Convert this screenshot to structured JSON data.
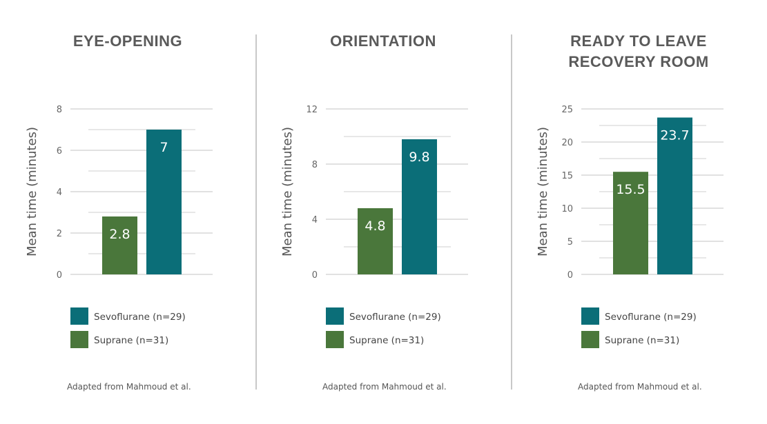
{
  "colors": {
    "sevoflurane": "#0b6e78",
    "suprane": "#4a773b",
    "text": "#555555",
    "grid": "#cfcfcf"
  },
  "chart_data": [
    {
      "type": "bar",
      "title": [
        "EYE-OPENING"
      ],
      "ylabel": "Mean time (minutes)",
      "ylim": [
        0,
        8
      ],
      "yticks": [
        0,
        2,
        4,
        6,
        8
      ],
      "grid": true,
      "series": [
        {
          "name": "Suprane (n=31)",
          "value": 2.8,
          "label": "2.8"
        },
        {
          "name": "Sevoflurane (n=29)",
          "value": 7,
          "label": "7"
        }
      ],
      "legend": [
        "Sevoflurane (n=29)",
        "Suprane (n=31)"
      ],
      "source": "Adapted from Mahmoud et al."
    },
    {
      "type": "bar",
      "title": [
        "ORIENTATION"
      ],
      "ylabel": "Mean time (minutes)",
      "ylim": [
        0,
        12
      ],
      "yticks": [
        0,
        4,
        8,
        12
      ],
      "grid": true,
      "series": [
        {
          "name": "Suprane (n=31)",
          "value": 4.8,
          "label": "4.8"
        },
        {
          "name": "Sevoflurane (n=29)",
          "value": 9.8,
          "label": "9.8"
        }
      ],
      "legend": [
        "Sevoflurane (n=29)",
        "Suprane (n=31)"
      ],
      "source": "Adapted from Mahmoud et al."
    },
    {
      "type": "bar",
      "title": [
        "READY TO LEAVE",
        "RECOVERY ROOM"
      ],
      "ylabel": "Mean time (minutes)",
      "ylim": [
        0,
        25
      ],
      "yticks": [
        0,
        5,
        10,
        15,
        20,
        25
      ],
      "grid": true,
      "series": [
        {
          "name": "Suprane (n=31)",
          "value": 15.5,
          "label": "15.5"
        },
        {
          "name": "Sevoflurane (n=29)",
          "value": 23.7,
          "label": "23.7"
        }
      ],
      "legend": [
        "Sevoflurane (n=29)",
        "Suprane (n=31)"
      ],
      "source": "Adapted from Mahmoud et al."
    }
  ]
}
